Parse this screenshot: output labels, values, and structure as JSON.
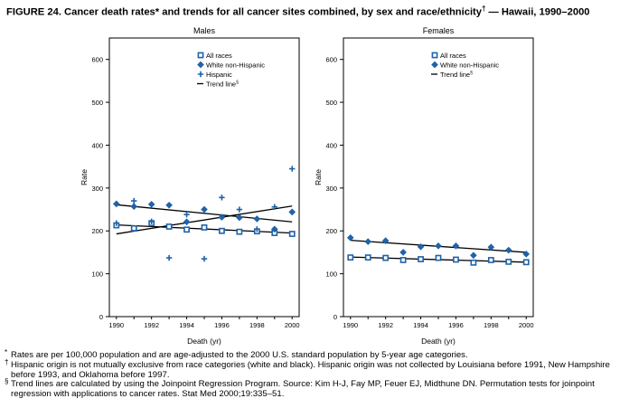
{
  "figure": {
    "title": "FIGURE 24. Cancer death rates* and trends for all cancer sites combined, by sex and race/ethnicity",
    "title_mark": "†",
    "title_suffix": " — Hawaii, 1990–2000"
  },
  "footnotes": [
    {
      "mark": "*",
      "text": "Rates are per 100,000 population and are age-adjusted to the 2000 U.S. standard population by 5-year age categories."
    },
    {
      "mark": "†",
      "text": "Hispanic origin is not mutually exclusive from race categories (white and black). Hispanic origin was not collected by Louisiana before 1991, New Hampshire before 1993, and Oklahoma before 1997."
    },
    {
      "mark": "§",
      "text": "Trend lines are calculated by using the Joinpoint Regression Program. Source: Kim H-J, Fay MP, Feuer EJ, Midthune DN. Permutation tests for joinpoint regression with applications to cancer rates. Stat Med 2000;19:335–51."
    }
  ],
  "chart_data": [
    {
      "type": "scatter",
      "title": "Males",
      "xlabel": "Death (yr)",
      "ylabel": "Rate",
      "xlim": [
        1989.6,
        2000.4
      ],
      "ylim": [
        0,
        650
      ],
      "x_ticks": [
        1990,
        1992,
        1994,
        1996,
        1998,
        2000
      ],
      "y_ticks": [
        0,
        100,
        200,
        300,
        400,
        500,
        600
      ],
      "legend_position": "top-right",
      "series": [
        {
          "name": "All races",
          "marker": "square",
          "x": [
            1990,
            1991,
            1992,
            1993,
            1994,
            1995,
            1996,
            1997,
            1998,
            1999,
            2000
          ],
          "y": [
            213,
            206,
            218,
            210,
            203,
            208,
            200,
            198,
            199,
            195,
            193
          ]
        },
        {
          "name": "White non-Hispanic",
          "marker": "diamond",
          "x": [
            1990,
            1991,
            1992,
            1993,
            1994,
            1995,
            1996,
            1997,
            1998,
            1999,
            2000
          ],
          "y": [
            263,
            257,
            262,
            260,
            221,
            250,
            232,
            231,
            228,
            204,
            244
          ]
        },
        {
          "name": "Hispanic",
          "marker": "plus",
          "x": [
            1990,
            1991,
            1992,
            1993,
            1994,
            1995,
            1996,
            1997,
            1998,
            1999,
            2000
          ],
          "y": [
            218,
            270,
            222,
            137,
            238,
            135,
            278,
            250,
            204,
            256,
            345
          ]
        }
      ],
      "trend_lines": [
        {
          "name": "Trend line",
          "mark": "§",
          "x": [
            1990,
            2000
          ],
          "y": [
            261,
            221
          ]
        },
        {
          "x": [
            1990,
            2000
          ],
          "y": [
            214,
            195
          ]
        },
        {
          "x": [
            1990,
            2000
          ],
          "y": [
            193,
            258
          ]
        }
      ]
    },
    {
      "type": "scatter",
      "title": "Females",
      "xlabel": "Death (yr)",
      "ylabel": "Rate",
      "xlim": [
        1989.6,
        2000.4
      ],
      "ylim": [
        0,
        650
      ],
      "x_ticks": [
        1990,
        1992,
        1994,
        1996,
        1998,
        2000
      ],
      "y_ticks": [
        0,
        100,
        200,
        300,
        400,
        500,
        600
      ],
      "legend_position": "top-right",
      "series": [
        {
          "name": "All races",
          "marker": "square",
          "x": [
            1990,
            1991,
            1992,
            1993,
            1994,
            1995,
            1996,
            1997,
            1998,
            1999,
            2000
          ],
          "y": [
            138,
            138,
            137,
            132,
            134,
            137,
            133,
            126,
            132,
            128,
            127
          ]
        },
        {
          "name": "White non-Hispanic",
          "marker": "diamond",
          "x": [
            1990,
            1991,
            1992,
            1993,
            1994,
            1995,
            1996,
            1997,
            1998,
            1999,
            2000
          ],
          "y": [
            184,
            175,
            177,
            150,
            163,
            165,
            165,
            143,
            162,
            155,
            146
          ]
        }
      ],
      "trend_lines": [
        {
          "name": "Trend line",
          "mark": "§",
          "x": [
            1990,
            2000
          ],
          "y": [
            178,
            150
          ]
        },
        {
          "x": [
            1990,
            2000
          ],
          "y": [
            139,
            127
          ]
        }
      ]
    }
  ]
}
